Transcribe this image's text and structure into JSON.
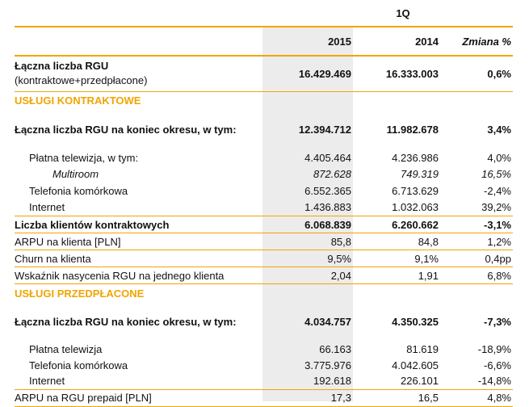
{
  "header": {
    "period": "1Q",
    "col1": "2015",
    "col2": "2014",
    "col3": "Zmiana %"
  },
  "total": {
    "label_line1": "Łączna liczba RGU",
    "label_line2": "(kontraktowe+przedpłacone)",
    "v2015": "16.429.469",
    "v2014": "16.333.003",
    "change": "0,6%"
  },
  "contract": {
    "section_title": "USŁUGI KONTRAKTOWE",
    "rows": [
      {
        "label": "Łączna liczba RGU na koniec okresu, w tym:",
        "v2015": "12.394.712",
        "v2014": "11.982.678",
        "change": "3,4%"
      },
      {
        "label": "Płatna telewizja, w tym:",
        "v2015": "4.405.464",
        "v2014": "4.236.986",
        "change": "4,0%"
      },
      {
        "label": "Multiroom",
        "v2015": "872.628",
        "v2014": "749.319",
        "change": "16,5%"
      },
      {
        "label": "Telefonia komórkowa",
        "v2015": "6.552.365",
        "v2014": "6.713.629",
        "change": "-2,4%"
      },
      {
        "label": "Internet",
        "v2015": "1.436.883",
        "v2014": "1.032.063",
        "change": "39,2%"
      },
      {
        "label": "Liczba klientów kontraktowych",
        "v2015": "6.068.839",
        "v2014": "6.260.662",
        "change": "-3,1%"
      },
      {
        "label": "ARPU na klienta [PLN]",
        "v2015": "85,8",
        "v2014": "84,8",
        "change": "1,2%"
      },
      {
        "label": "Churn na klienta",
        "v2015": "9,5%",
        "v2014": "9,1%",
        "change": "0,4pp"
      },
      {
        "label": "Wskaźnik nasycenia RGU na jednego klienta",
        "v2015": "2,04",
        "v2014": "1,91",
        "change": "6,8%"
      }
    ]
  },
  "prepaid": {
    "section_title": "USŁUGI PRZEDPŁACONE",
    "rows": [
      {
        "label": "Łączna liczba RGU na koniec okresu, w tym:",
        "v2015": "4.034.757",
        "v2014": "4.350.325",
        "change": "-7,3%"
      },
      {
        "label": "Płatna telewizja",
        "v2015": "66.163",
        "v2014": "81.619",
        "change": "-18,9%"
      },
      {
        "label": "Telefonia komórkowa",
        "v2015": "3.775.976",
        "v2014": "4.042.605",
        "change": "-6,6%"
      },
      {
        "label": "Internet",
        "v2015": "192.618",
        "v2014": "226.101",
        "change": "-14,8%"
      },
      {
        "label": "ARPU na RGU prepaid [PLN]",
        "v2015": "17,3",
        "v2014": "16,5",
        "change": "4,8%"
      }
    ]
  },
  "colors": {
    "accent": "#f0a500",
    "shade": "#ececec"
  }
}
